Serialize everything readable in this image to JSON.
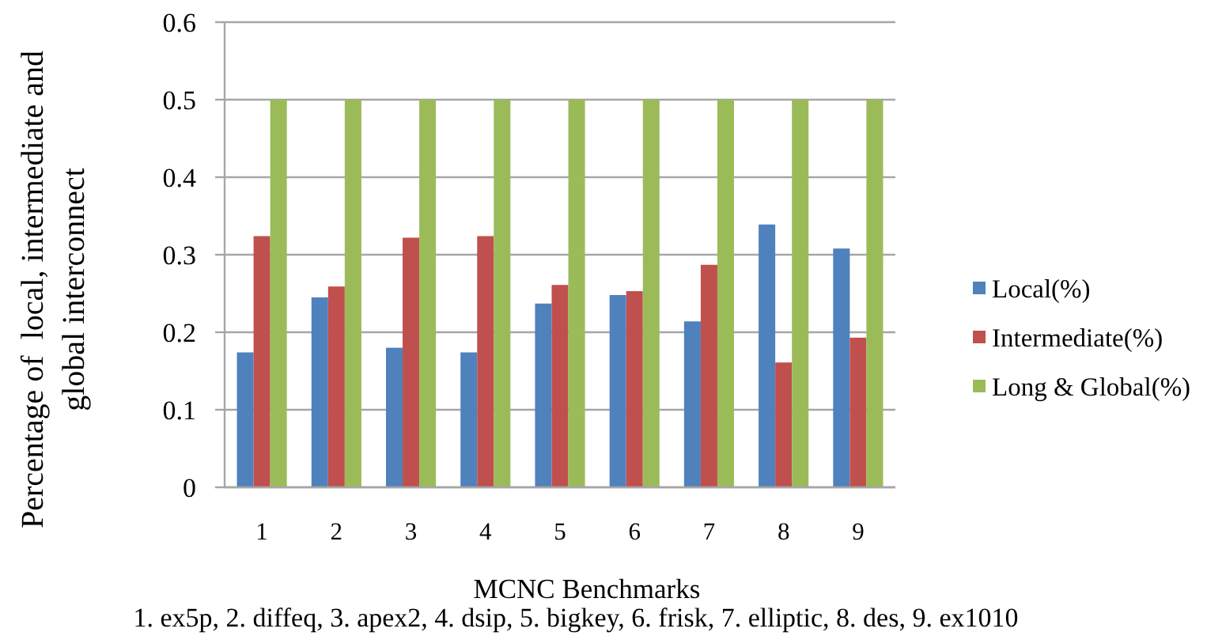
{
  "chart_data": {
    "type": "bar",
    "ylabel": "Percentage of  local, intermediate and\nglobal interconnect",
    "xlabel": "MCNC Benchmarks",
    "annotations": [
      "1. ex5p, 2. diffeq, 3. apex2, 4. dsip, 5. bigkey, 6. frisk, 7. elliptic, 8. des, 9. ex1010"
    ],
    "categories": [
      "1",
      "2",
      "3",
      "4",
      "5",
      "6",
      "7",
      "8",
      "9"
    ],
    "series": [
      {
        "name": "Local(%)",
        "color": "#4f81bd",
        "values": [
          0.174,
          0.245,
          0.18,
          0.174,
          0.237,
          0.248,
          0.214,
          0.339,
          0.308
        ]
      },
      {
        "name": "Intermediate(%)",
        "color": "#c0504d",
        "values": [
          0.324,
          0.259,
          0.322,
          0.324,
          0.261,
          0.253,
          0.287,
          0.161,
          0.193
        ]
      },
      {
        "name": "Long & Global(%)",
        "color": "#9bbb59",
        "values": [
          0.5,
          0.5,
          0.5,
          0.5,
          0.5,
          0.5,
          0.5,
          0.5,
          0.5
        ]
      }
    ],
    "ylim": [
      0,
      0.6
    ],
    "yticks": [
      0,
      0.1,
      0.2,
      0.3,
      0.4,
      0.5,
      0.6
    ],
    "grid": "y",
    "legend": "right"
  }
}
